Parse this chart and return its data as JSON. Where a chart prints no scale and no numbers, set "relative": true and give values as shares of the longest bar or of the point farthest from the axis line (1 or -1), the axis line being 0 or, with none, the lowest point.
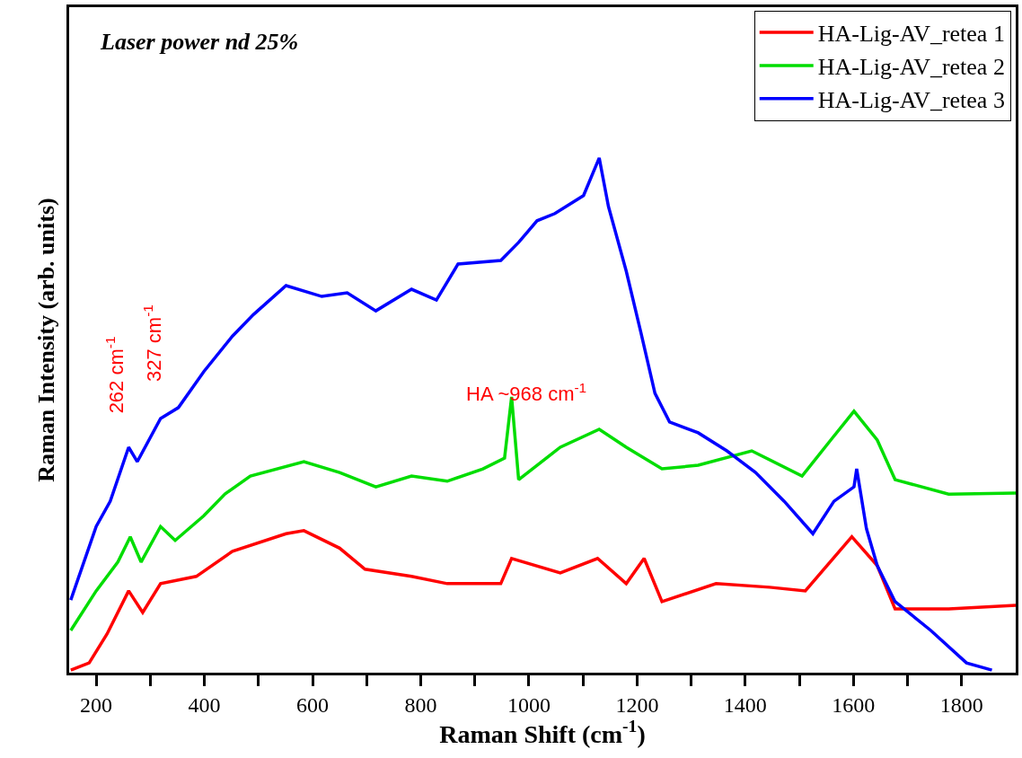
{
  "chart_data": {
    "type": "line",
    "relative": true,
    "xlabel": "Raman Shift (cm$^{-1}$)",
    "ylabel": "Raman Intensity (arb. units)",
    "xlim": [
      150,
      1900
    ],
    "xticks": [
      200,
      {
        "value": 300,
        "label": null
      },
      400,
      {
        "value": 500,
        "label": null
      },
      600,
      {
        "value": 700,
        "label": null
      },
      800,
      {
        "value": 900,
        "label": null
      },
      1000,
      {
        "value": 1100,
        "label": null
      },
      1200,
      {
        "value": 1300,
        "label": null
      },
      1400,
      {
        "value": 1500,
        "label": null
      },
      1600,
      {
        "value": 1700,
        "label": null
      },
      1800
    ],
    "tick_labels": "x",
    "legend": "top right",
    "marker": "none",
    "line_style": "solid",
    "annotations": [
      "Laser power nd 25%",
      "262 cm$^{-1}$",
      "327 cm$^{-1}$",
      "HA ~968 cm$^{-1}$"
    ],
    "series": [
      {
        "name": "HA-Lig-AV_retea 1",
        "color": "#ff0000",
        "x": [
          153,
          187,
          220,
          260,
          286,
          319,
          385,
          452,
          551,
          584,
          650,
          697,
          783,
          849,
          948,
          968,
          1058,
          1127,
          1180,
          1213,
          1246,
          1346,
          1445,
          1511,
          1597,
          1644,
          1677,
          1776,
          1900
        ],
        "values": [
          0.005,
          0.019,
          0.075,
          0.159,
          0.117,
          0.173,
          0.187,
          0.236,
          0.27,
          0.276,
          0.242,
          0.201,
          0.187,
          0.173,
          0.173,
          0.222,
          0.194,
          0.222,
          0.173,
          0.222,
          0.138,
          0.173,
          0.166,
          0.159,
          0.264,
          0.208,
          0.124,
          0.124,
          0.131
        ]
      },
      {
        "name": "HA-Lig-AV_retea 2",
        "color": "#00dd00",
        "x": [
          153,
          200,
          240,
          263,
          283,
          319,
          346,
          399,
          438,
          485,
          584,
          650,
          717,
          783,
          849,
          915,
          955,
          968,
          981,
          1058,
          1130,
          1180,
          1246,
          1313,
          1412,
          1505,
          1558,
          1601,
          1644,
          1677,
          1776,
          1900
        ],
        "values": [
          0.082,
          0.159,
          0.215,
          0.264,
          0.215,
          0.284,
          0.257,
          0.305,
          0.347,
          0.382,
          0.41,
          0.389,
          0.361,
          0.382,
          0.372,
          0.396,
          0.417,
          0.536,
          0.375,
          0.438,
          0.473,
          0.438,
          0.396,
          0.403,
          0.431,
          0.382,
          0.452,
          0.508,
          0.452,
          0.375,
          0.347,
          0.349
        ]
      },
      {
        "name": "HA-Lig-AV_retea 3",
        "color": "#0000ff",
        "x": [
          153,
          200,
          226,
          260,
          276,
          319,
          352,
          399,
          452,
          491,
          551,
          617,
          664,
          717,
          783,
          829,
          869,
          948,
          981,
          1015,
          1048,
          1101,
          1130,
          1147,
          1180,
          1207,
          1233,
          1260,
          1313,
          1366,
          1419,
          1472,
          1525,
          1564,
          1601,
          1606,
          1624,
          1644,
          1677,
          1743,
          1809,
          1856
        ],
        "values": [
          0.141,
          0.284,
          0.333,
          0.438,
          0.41,
          0.494,
          0.515,
          0.585,
          0.654,
          0.696,
          0.752,
          0.731,
          0.738,
          0.703,
          0.745,
          0.724,
          0.794,
          0.801,
          0.836,
          0.878,
          0.892,
          0.927,
          1.0,
          0.906,
          0.78,
          0.661,
          0.543,
          0.487,
          0.466,
          0.431,
          0.389,
          0.333,
          0.27,
          0.333,
          0.361,
          0.396,
          0.28,
          0.208,
          0.138,
          0.082,
          0.019,
          0.005
        ]
      }
    ]
  }
}
